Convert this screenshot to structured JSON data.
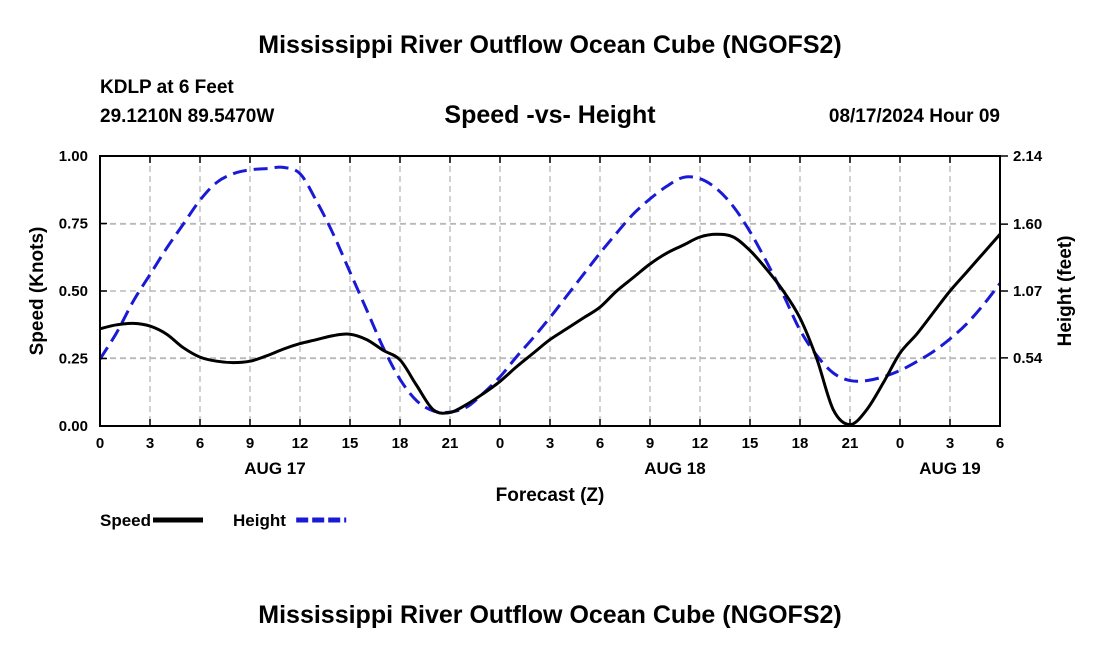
{
  "title": "Mississippi River Outflow Ocean Cube (NGOFS2)",
  "footer_title": "Mississippi River Outflow Ocean Cube (NGOFS2)",
  "station": {
    "name": "KDLP at 6 Feet",
    "coords": "29.1210N  89.5470W"
  },
  "forecast_time": "08/17/2024 Hour 09",
  "chart_data": {
    "type": "line",
    "title": "Speed -vs- Height",
    "xlabel": "Forecast (Z)",
    "ylabel": "Speed (Knots)",
    "y2label": "Height (feet)",
    "x_range": [
      0,
      54
    ],
    "x_ticks": [
      {
        "x": 0,
        "label": "0"
      },
      {
        "x": 3,
        "label": "3"
      },
      {
        "x": 6,
        "label": "6"
      },
      {
        "x": 9,
        "label": "9"
      },
      {
        "x": 12,
        "label": "12"
      },
      {
        "x": 15,
        "label": "15"
      },
      {
        "x": 18,
        "label": "18"
      },
      {
        "x": 21,
        "label": "21"
      },
      {
        "x": 24,
        "label": "0"
      },
      {
        "x": 27,
        "label": "3"
      },
      {
        "x": 30,
        "label": "6"
      },
      {
        "x": 33,
        "label": "9"
      },
      {
        "x": 36,
        "label": "12"
      },
      {
        "x": 39,
        "label": "15"
      },
      {
        "x": 42,
        "label": "18"
      },
      {
        "x": 45,
        "label": "21"
      },
      {
        "x": 48,
        "label": "0"
      },
      {
        "x": 51,
        "label": "3"
      },
      {
        "x": 54,
        "label": "6"
      }
    ],
    "date_labels": [
      {
        "x": 10.5,
        "label": "AUG 17"
      },
      {
        "x": 34.5,
        "label": "AUG 18"
      },
      {
        "x": 51,
        "label": "AUG 19"
      }
    ],
    "ylim": [
      0,
      1
    ],
    "y_ticks": [
      {
        "v": 0,
        "label": "0.00"
      },
      {
        "v": 0.25,
        "label": "0.25"
      },
      {
        "v": 0.5,
        "label": "0.50"
      },
      {
        "v": 0.75,
        "label": "0.75"
      },
      {
        "v": 1,
        "label": "1.00"
      }
    ],
    "y2lim": [
      0,
      2.14
    ],
    "y2_ticks": [
      {
        "v": 0.54,
        "label": "0.54"
      },
      {
        "v": 1.07,
        "label": "1.07"
      },
      {
        "v": 1.6,
        "label": "1.60"
      },
      {
        "v": 2.14,
        "label": "2.14"
      }
    ],
    "series": [
      {
        "name": "Speed",
        "axis": "left",
        "color": "#000000",
        "dash": "none",
        "x": [
          0,
          1,
          2,
          3,
          4,
          5,
          6,
          7,
          8,
          9,
          10,
          11,
          12,
          13,
          14,
          15,
          16,
          17,
          18,
          19,
          20,
          21,
          22,
          23,
          24,
          25,
          26,
          27,
          28,
          29,
          30,
          31,
          32,
          33,
          34,
          35,
          36,
          37,
          38,
          39,
          40,
          41,
          42,
          43,
          44,
          45,
          46,
          47,
          48,
          49,
          50,
          51,
          52,
          53,
          54
        ],
        "y": [
          0.36,
          0.375,
          0.38,
          0.37,
          0.34,
          0.29,
          0.255,
          0.24,
          0.235,
          0.24,
          0.26,
          0.285,
          0.305,
          0.32,
          0.335,
          0.34,
          0.32,
          0.28,
          0.245,
          0.15,
          0.06,
          0.05,
          0.08,
          0.12,
          0.165,
          0.22,
          0.27,
          0.32,
          0.36,
          0.4,
          0.44,
          0.5,
          0.55,
          0.6,
          0.64,
          0.67,
          0.7,
          0.71,
          0.7,
          0.65,
          0.58,
          0.5,
          0.4,
          0.25,
          0.06,
          0.005,
          0.06,
          0.16,
          0.27,
          0.34,
          0.42,
          0.5,
          0.57,
          0.64,
          0.71
        ]
      },
      {
        "name": "Height",
        "axis": "right",
        "color": "#1a1ad6",
        "dash": "14,7",
        "x": [
          0,
          1,
          2,
          3,
          4,
          5,
          6,
          7,
          8,
          9,
          10,
          11,
          12,
          13,
          14,
          15,
          16,
          17,
          18,
          19,
          20,
          21,
          22,
          23,
          24,
          25,
          26,
          27,
          28,
          29,
          30,
          31,
          32,
          33,
          34,
          35,
          36,
          37,
          38,
          39,
          40,
          41,
          42,
          43,
          44,
          45,
          46,
          47,
          48,
          49,
          50,
          51,
          52,
          53,
          54
        ],
        "y": [
          0.53,
          0.74,
          0.99,
          1.2,
          1.41,
          1.6,
          1.79,
          1.93,
          2.0,
          2.03,
          2.04,
          2.05,
          2.0,
          1.78,
          1.52,
          1.22,
          0.92,
          0.62,
          0.37,
          0.2,
          0.12,
          0.11,
          0.15,
          0.26,
          0.39,
          0.55,
          0.7,
          0.86,
          1.03,
          1.2,
          1.37,
          1.53,
          1.68,
          1.8,
          1.9,
          1.97,
          1.96,
          1.88,
          1.74,
          1.54,
          1.3,
          1.04,
          0.76,
          0.56,
          0.42,
          0.36,
          0.36,
          0.39,
          0.44,
          0.51,
          0.59,
          0.69,
          0.81,
          0.96,
          1.13
        ]
      }
    ],
    "legend": [
      {
        "name": "Speed",
        "color": "#000000",
        "dash": "none"
      },
      {
        "name": "Height",
        "color": "#1a1ad6",
        "dash": "dash"
      }
    ]
  }
}
